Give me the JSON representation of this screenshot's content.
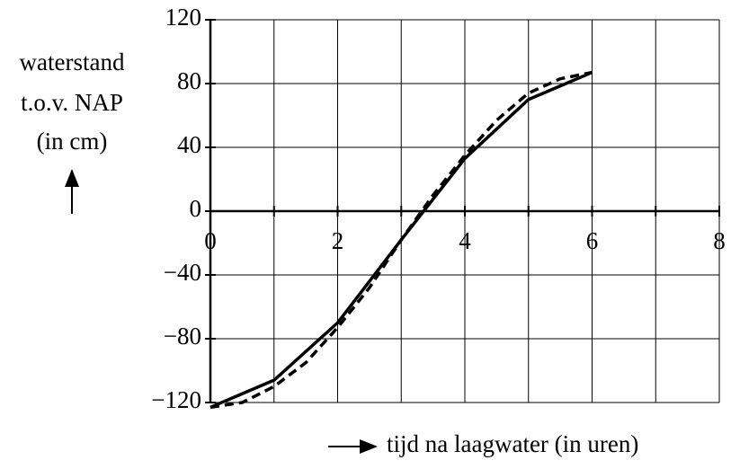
{
  "chart_data": {
    "type": "line",
    "ylabel": [
      "waterstand",
      "t.o.v. NAP",
      "(in cm)"
    ],
    "xlabel": "tijd na laagwater (in uren)",
    "xlim": [
      0,
      8
    ],
    "xticks": [
      0,
      2,
      4,
      6,
      8
    ],
    "xminorticks": [
      1,
      3,
      5,
      7
    ],
    "ylim": [
      -120,
      120
    ],
    "yticks": [
      {
        "value": -120,
        "label": "−120"
      },
      {
        "value": -80,
        "label": "−80"
      },
      {
        "value": -40,
        "label": "−40"
      },
      0,
      40,
      80,
      120
    ],
    "grid": true,
    "series": [
      {
        "color": "#000000",
        "dash": false,
        "x": [
          0,
          1,
          2,
          3,
          4,
          5,
          6
        ],
        "y": [
          -123,
          -106,
          -70,
          -18,
          33,
          70,
          87
        ]
      },
      {
        "color": "#000000",
        "dash": true,
        "x": [
          0,
          0.5,
          1,
          1.5,
          2,
          2.5,
          3,
          3.5,
          4,
          4.5,
          5,
          5.5,
          6
        ],
        "y": [
          -123,
          -120,
          -110,
          -95,
          -73,
          -48,
          -18,
          10,
          35,
          57,
          74,
          83,
          87
        ]
      }
    ]
  }
}
